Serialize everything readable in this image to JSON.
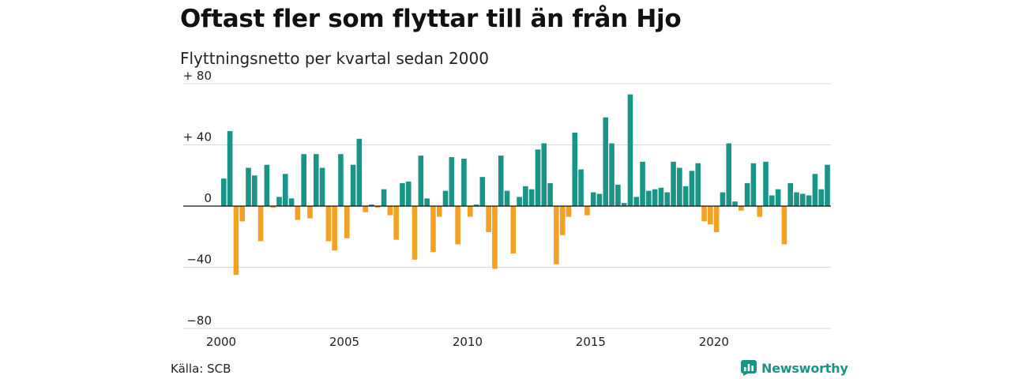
{
  "title": "Oftast fler som flyttar till än från Hjo",
  "subtitle": "Flyttningsnetto per kvartal sedan 2000",
  "source": "Källa: SCB",
  "brand": {
    "name": "Newsworthy",
    "icon": "newsworthy-logo-icon"
  },
  "colors": {
    "positive": "#1a9486",
    "negative": "#f2a122",
    "grid": "#d9d9d9"
  },
  "chart_data": {
    "type": "bar",
    "ylim": [
      -80,
      80
    ],
    "yticks": [
      {
        "value": 80,
        "label": "+ 80"
      },
      {
        "value": 40,
        "label": "+ 40"
      },
      {
        "value": 0,
        "label": "0"
      },
      {
        "value": -40,
        "label": "−40"
      },
      {
        "value": -80,
        "label": "−80"
      }
    ],
    "xticks": [
      "2000",
      "2005",
      "2010",
      "2015",
      "2020"
    ],
    "start_year": 2000,
    "grid": true,
    "values": [
      18,
      49,
      -45,
      -10,
      25,
      20,
      -23,
      27,
      -1,
      6,
      21,
      5,
      -9,
      34,
      -8,
      34,
      25,
      -23,
      -29,
      34,
      -21,
      27,
      44,
      -4,
      1,
      -1,
      11,
      -6,
      -22,
      15,
      16,
      -35,
      33,
      5,
      -30,
      -7,
      10,
      32,
      -25,
      31,
      -7,
      1,
      19,
      -17,
      -41,
      33,
      10,
      -31,
      6,
      13,
      11,
      37,
      41,
      15,
      -38,
      -19,
      -7,
      48,
      24,
      -6,
      9,
      8,
      58,
      41,
      14,
      2,
      73,
      6,
      29,
      10,
      11,
      12,
      9,
      29,
      25,
      13,
      23,
      28,
      -10,
      -12,
      -17,
      9,
      41,
      3,
      -3,
      15,
      28,
      -7,
      29,
      7,
      11,
      -25,
      15,
      9,
      8,
      7,
      21,
      11,
      27
    ]
  }
}
